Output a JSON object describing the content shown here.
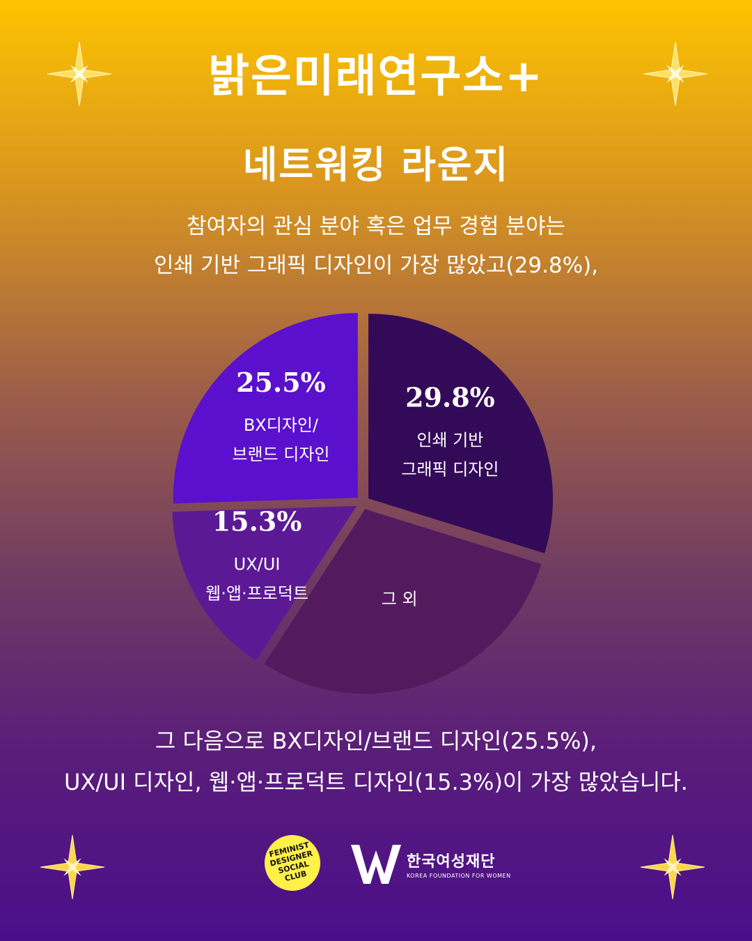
{
  "header": {
    "title": "밝은미래연구소+",
    "subtitle": "네트워킹 라운지"
  },
  "intro": {
    "line1": "참여자의 관심 분야 혹은 업무 경험 분야는",
    "line2": "인쇄 기반 그래픽 디자인이 가장 많았고(29.8%),"
  },
  "outro": {
    "line1": "그 다음으로 BX디자인/브랜드 디자인(25.5%),",
    "line2": "UX/UI 디자인, 웹·앱·프로덕트 디자인(15.3%)이 가장 많았습니다."
  },
  "colors": {
    "background_top": "#fdc300",
    "background_bottom": "#4a0e8a",
    "slice_print": "#330a57",
    "slice_bx": "#5a10cc",
    "slice_ux": "#5c1996",
    "slice_other": "#541a5e",
    "star": "#ffd54a"
  },
  "chart_data": {
    "type": "pie",
    "title": "",
    "slices": [
      {
        "label_lines": [
          "인쇄 기반",
          "그래픽 디자인"
        ],
        "value": 29.8,
        "value_label": "29.8%",
        "color": "#330a57"
      },
      {
        "label_lines": [
          "그 외"
        ],
        "value": 29.4,
        "value_label": "",
        "color": "#541a5e"
      },
      {
        "label_lines": [
          "UX/UI",
          "웹·앱·프로덕트"
        ],
        "value": 15.3,
        "value_label": "15.3%",
        "color": "#5c1996"
      },
      {
        "label_lines": [
          "BX디자인/",
          "브랜드 디자인"
        ],
        "value": 25.5,
        "value_label": "25.5%",
        "color": "#5a10cc"
      }
    ],
    "legend": "none",
    "start_angle": "top, clockwise"
  },
  "footer": {
    "logo1_lines": [
      "FEMINIST",
      "DESIGNER",
      "SOCIAL",
      "CLUB"
    ],
    "logo2_name": "한국여성재단",
    "logo2_sub": "KOREA FOUNDATION FOR WOMEN",
    "logo2_mark": "W"
  }
}
